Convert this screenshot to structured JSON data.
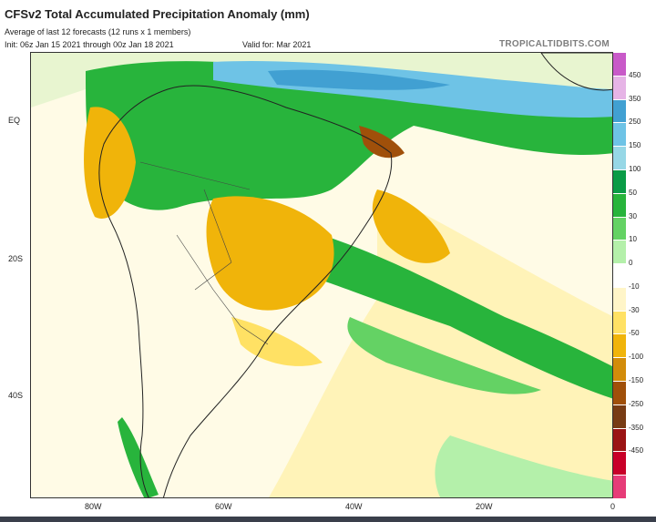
{
  "header": {
    "title": "CFSv2 Total Accumulated Precipitation Anomaly (mm)",
    "subtitle": "Average of last 12 forecasts (12 runs x 1 members)",
    "init": "Init: 06z Jan 15 2021 through 00z Jan 18 2021",
    "valid": "Valid for: Mar 2021",
    "brand": "TROPICALTIDBITS.COM"
  },
  "map": {
    "type": "precipitation-anomaly-map",
    "region": "South America and South Atlantic",
    "lat_labels": [
      "EQ",
      "20S",
      "40S"
    ],
    "lon_labels": [
      "80W",
      "60W",
      "40W",
      "20W",
      "0"
    ]
  },
  "colorbar": {
    "levels": [
      "450",
      "350",
      "250",
      "150",
      "100",
      "50",
      "30",
      "10",
      "0",
      "-10",
      "-30",
      "-50",
      "-100",
      "-150",
      "-250",
      "-350",
      "-450"
    ],
    "colors": [
      "#c85ac8",
      "#e6b4e6",
      "#41a0d2",
      "#6ec3e6",
      "#96d7e6",
      "#0a9b46",
      "#28b43c",
      "#64d264",
      "#b4f0aa",
      "#ffffff",
      "#fff5c8",
      "#ffe164",
      "#f0b40a",
      "#d28c0a",
      "#a0500a",
      "#783c14",
      "#9b1414",
      "#c80028",
      "#e63c78"
    ]
  },
  "colors": {
    "ocean_neutral": "#fffbe6",
    "dry": "#f0b40a",
    "wet": "#28b43c",
    "very_wet": "#41a0d2"
  }
}
